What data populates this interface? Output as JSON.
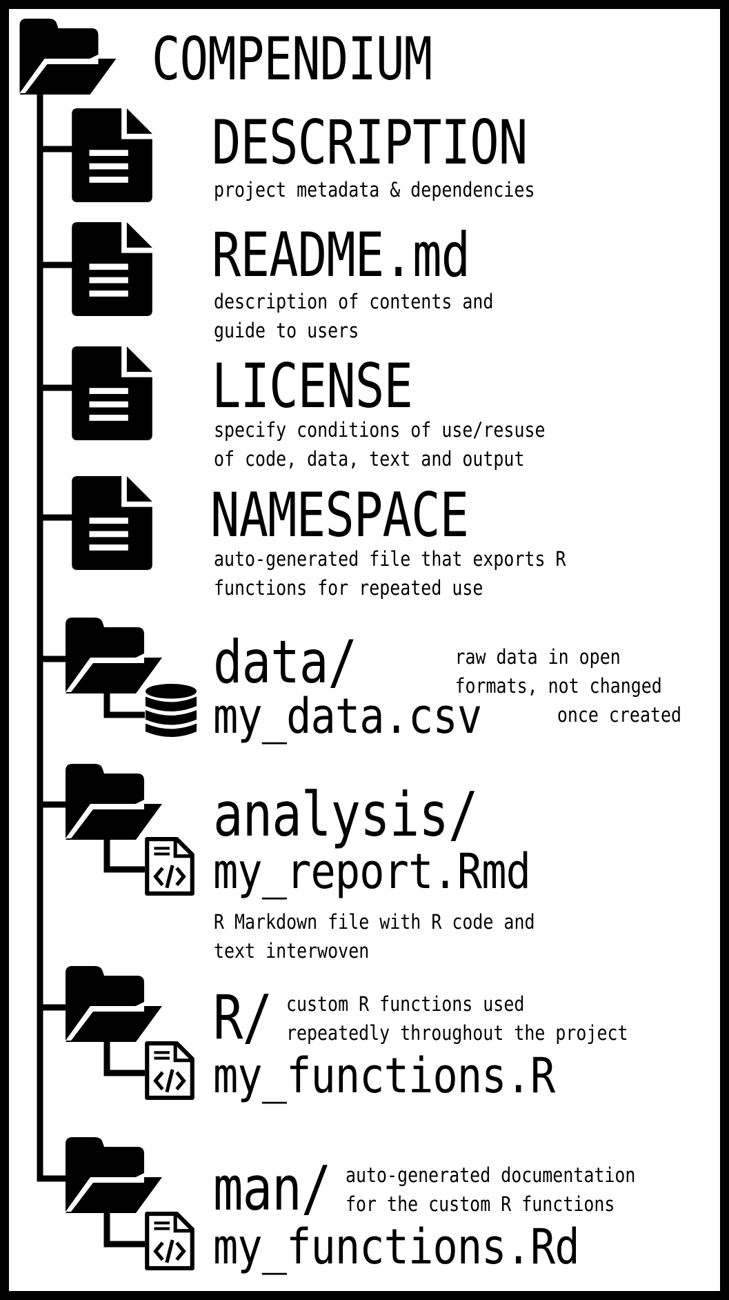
{
  "root": {
    "title": "COMPENDIUM",
    "icon": "folder-open-icon"
  },
  "items": [
    {
      "key": "description",
      "name": "DESCRIPTION",
      "icon": "file-text-icon",
      "lines": [
        "project metadata & dependencies"
      ]
    },
    {
      "key": "readme",
      "name": "README.md",
      "icon": "file-text-icon",
      "lines": [
        "description of contents and",
        "guide to users"
      ]
    },
    {
      "key": "license",
      "name": "LICENSE",
      "icon": "file-text-icon",
      "lines": [
        "specify conditions of use/resuse",
        "of code, data, text and output"
      ]
    },
    {
      "key": "namespace",
      "name": "NAMESPACE",
      "icon": "file-text-icon",
      "lines": [
        "auto-generated file that exports R",
        "functions for repeated use"
      ]
    },
    {
      "key": "data",
      "name": "data/",
      "icon": "folder-open-icon",
      "child": "my_data.csv",
      "child_icon": "database-icon",
      "lines": [
        "raw data in open",
        "formats, not changed",
        "once created"
      ]
    },
    {
      "key": "analysis",
      "name": "analysis/",
      "icon": "folder-open-icon",
      "child": "my_report.Rmd",
      "child_icon": "code-file-icon",
      "lines": [
        "R Markdown file with R code and",
        "text interwoven"
      ]
    },
    {
      "key": "r",
      "name": "R/",
      "icon": "folder-open-icon",
      "child": "my_functions.R",
      "child_icon": "code-file-icon",
      "lines": [
        "custom R functions used",
        "repeatedly throughout the project"
      ]
    },
    {
      "key": "man",
      "name": "man/",
      "icon": "folder-open-icon",
      "child": "my_functions.Rd",
      "child_icon": "code-file-icon",
      "lines": [
        "auto-generated documentation",
        "for the custom R functions"
      ]
    }
  ],
  "colors": {
    "ink": "#000000",
    "paper": "#ffffff"
  }
}
